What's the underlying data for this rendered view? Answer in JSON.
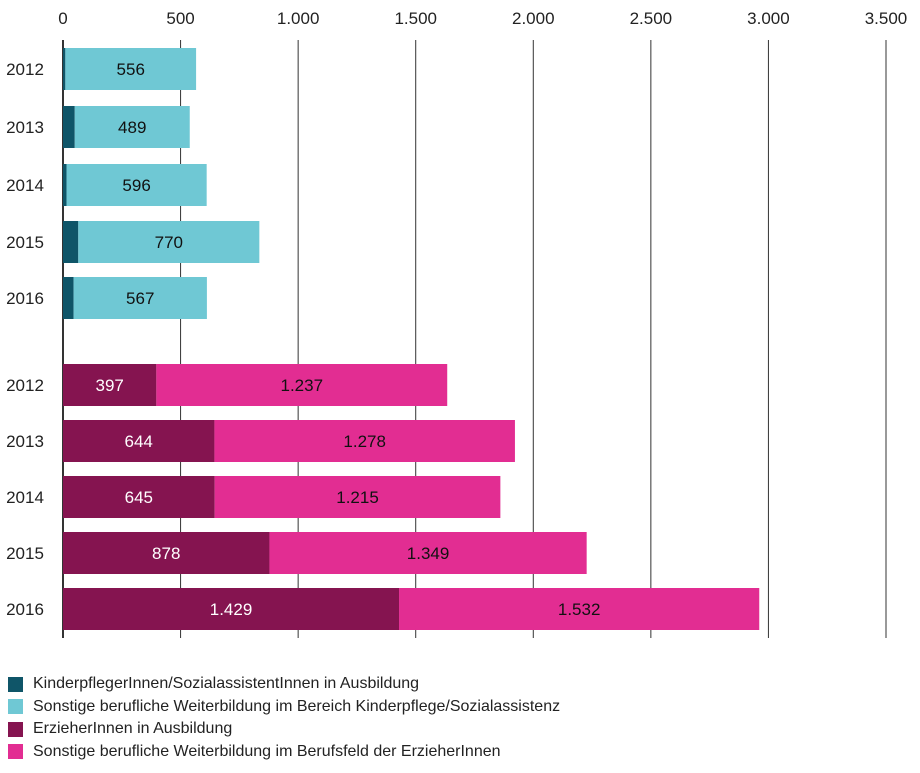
{
  "chart_data": {
    "type": "bar",
    "orientation": "horizontal",
    "stacked": true,
    "xlim": [
      0,
      3500
    ],
    "xticks": [
      0,
      500,
      1000,
      1500,
      2000,
      2500,
      3000,
      3500
    ],
    "xtick_labels": [
      "0",
      "500",
      "1.000",
      "1.500",
      "2.000",
      "2.500",
      "3.000",
      "3.500"
    ],
    "grid": "vertical",
    "legend_position": "bottom-left",
    "groups": [
      {
        "categories": [
          "2012",
          "2013",
          "2014",
          "2015",
          "2016"
        ],
        "series": [
          {
            "name": "KinderpflegerInnen/SozialassistentInnen in Ausbildung",
            "color": "#0f5568",
            "values": [
              10,
              50,
              15,
              65,
              45
            ],
            "labels": [
              "",
              "",
              "",
              "",
              ""
            ],
            "label_color": "#ffffff"
          },
          {
            "name": "Sonstige berufliche Weiterbildung im Bereich Kinderpflege/Sozialassistenz",
            "color": "#6fc8d4",
            "values": [
              556,
              489,
              596,
              770,
              567
            ],
            "labels": [
              "556",
              "489",
              "596",
              "770",
              "567"
            ],
            "label_color": "#111111"
          }
        ]
      },
      {
        "categories": [
          "2012",
          "2013",
          "2014",
          "2015",
          "2016"
        ],
        "series": [
          {
            "name": "ErzieherInnen in Ausbildung",
            "color": "#851450",
            "values": [
              397,
              644,
              645,
              878,
              1429
            ],
            "labels": [
              "397",
              "644",
              "645",
              "878",
              "1.429"
            ],
            "label_color": "#ffffff"
          },
          {
            "name": "Sonstige berufliche Weiterbildung im Berufsfeld der ErzieherInnen",
            "color": "#e22d92",
            "values": [
              1237,
              1278,
              1215,
              1349,
              1532
            ],
            "labels": [
              "1.237",
              "1.278",
              "1.215",
              "1.349",
              "1.532"
            ],
            "label_color": "#111111"
          }
        ]
      }
    ]
  },
  "legend": [
    {
      "label": "KinderpflegerInnen/SozialassistentInnen in Ausbildung",
      "color": "#0f5568"
    },
    {
      "label": "Sonstige berufliche Weiterbildung im Bereich Kinderpflege/Sozialassistenz",
      "color": "#6fc8d4"
    },
    {
      "label": "ErzieherInnen in Ausbildung",
      "color": "#851450"
    },
    {
      "label": "Sonstige berufliche Weiterbildung im Berufsfeld der ErzieherInnen",
      "color": "#e22d92"
    }
  ]
}
